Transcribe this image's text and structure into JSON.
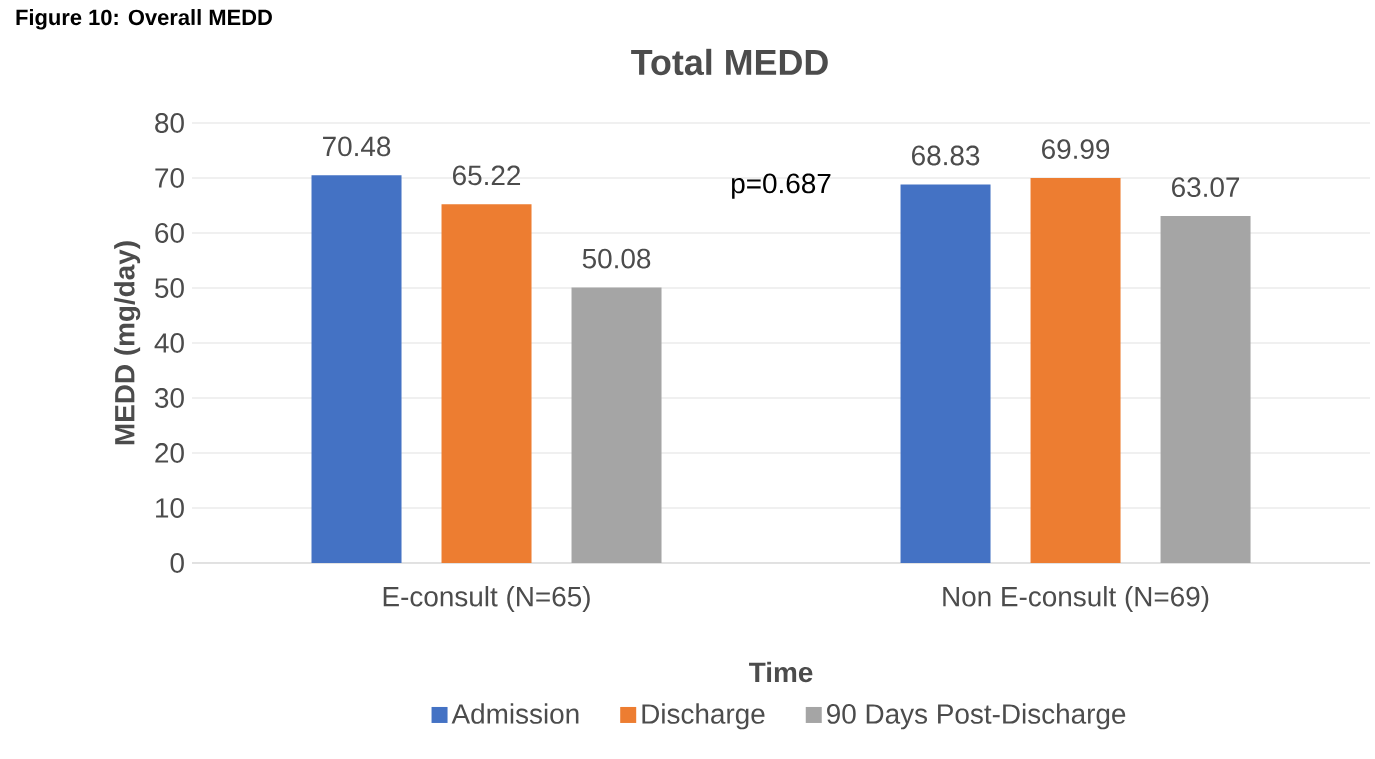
{
  "chart_data": {
    "type": "bar",
    "title": "Total MEDD",
    "xlabel": "Time",
    "ylabel": "MEDD (mg/day)",
    "categories": [
      "E-consult (N=65)",
      "Non E-consult (N=69)"
    ],
    "series": [
      {
        "name": "Admission",
        "color": "#4472c4",
        "values": [
          70.48,
          68.83
        ]
      },
      {
        "name": "Discharge",
        "color": "#ed7d31",
        "values": [
          65.22,
          69.99
        ]
      },
      {
        "name": "90 Days Post-Discharge",
        "color": "#a5a5a5",
        "values": [
          50.08,
          63.07
        ]
      }
    ],
    "ylim": [
      0,
      80
    ],
    "yticks": [
      0,
      10,
      20,
      30,
      40,
      50,
      60,
      70,
      80
    ],
    "grid": "y",
    "legend": "bottom",
    "data_labels": true,
    "annotations": [
      "Figure 10: Overall MEDD",
      "p=0.687"
    ]
  }
}
